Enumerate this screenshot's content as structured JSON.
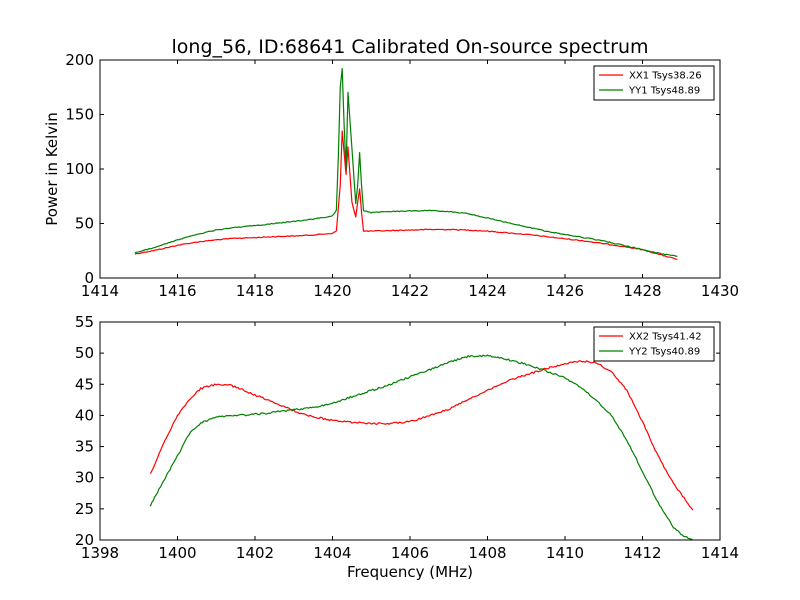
{
  "chart_data": [
    {
      "type": "line",
      "title": "long_56, ID:68641 Calibrated On-source spectrum",
      "xlabel": "",
      "ylabel": "Power in Kelvin",
      "xlim": [
        1414,
        1430
      ],
      "ylim": [
        0,
        200
      ],
      "xticks": [
        "1414",
        "1416",
        "1418",
        "1420",
        "1422",
        "1424",
        "1426",
        "1428",
        "1430"
      ],
      "yticks": [
        "0",
        "50",
        "100",
        "150",
        "200"
      ],
      "grid": false,
      "legend_position": "top-right",
      "series": [
        {
          "name": "XX1 Tsys38.26",
          "color": "#ff0000",
          "x": [
            1414.9,
            1415.5,
            1416.0,
            1416.5,
            1417.0,
            1417.5,
            1418.0,
            1418.5,
            1419.0,
            1419.5,
            1420.0,
            1420.1,
            1420.2,
            1420.25,
            1420.3,
            1420.35,
            1420.4,
            1420.5,
            1420.6,
            1420.65,
            1420.7,
            1420.75,
            1420.8,
            1421.0,
            1421.5,
            1422.0,
            1422.5,
            1423.0,
            1423.5,
            1424.0,
            1424.5,
            1425.0,
            1425.5,
            1426.0,
            1426.5,
            1427.0,
            1427.5,
            1428.0,
            1428.5,
            1428.9
          ],
          "y": [
            22,
            26,
            30,
            33,
            35,
            36.5,
            37,
            38,
            38.5,
            39.5,
            41,
            43,
            85,
            135,
            115,
            95,
            120,
            70,
            56,
            70,
            82,
            60,
            43,
            43,
            43.5,
            44,
            44.5,
            44.5,
            44,
            43,
            41.5,
            40,
            38,
            36,
            34,
            31.5,
            29,
            26,
            21,
            17
          ]
        },
        {
          "name": "YY1 Tsys48.89",
          "color": "#008000",
          "x": [
            1414.9,
            1415.5,
            1416.0,
            1416.5,
            1417.0,
            1417.5,
            1418.0,
            1418.5,
            1419.0,
            1419.5,
            1420.0,
            1420.1,
            1420.15,
            1420.2,
            1420.25,
            1420.3,
            1420.35,
            1420.4,
            1420.5,
            1420.6,
            1420.65,
            1420.7,
            1420.75,
            1420.8,
            1421.0,
            1421.5,
            1422.0,
            1422.5,
            1423.0,
            1423.5,
            1424.0,
            1424.5,
            1425.0,
            1425.5,
            1426.0,
            1426.5,
            1427.0,
            1427.5,
            1428.0,
            1428.5,
            1428.9
          ],
          "y": [
            23,
            29,
            35,
            40,
            44,
            46.5,
            48,
            50,
            52,
            54,
            57,
            62,
            110,
            175,
            192,
            140,
            100,
            170,
            120,
            68,
            85,
            115,
            85,
            62,
            60,
            61,
            61.5,
            62,
            61,
            59,
            55,
            51,
            47,
            43,
            40,
            37,
            34,
            30,
            26,
            22,
            20
          ]
        }
      ]
    },
    {
      "type": "line",
      "title": "",
      "xlabel": "Frequency (MHz)",
      "ylabel": "",
      "xlim": [
        1398,
        1414
      ],
      "ylim": [
        20,
        55
      ],
      "xticks": [
        "1398",
        "1400",
        "1402",
        "1404",
        "1406",
        "1408",
        "1410",
        "1412",
        "1414"
      ],
      "yticks": [
        "20",
        "25",
        "30",
        "35",
        "40",
        "45",
        "50",
        "55"
      ],
      "grid": false,
      "legend_position": "top-right",
      "series": [
        {
          "name": "XX2 Tsys41.42",
          "color": "#ff0000",
          "x": [
            1399.3,
            1399.6,
            1400.0,
            1400.3,
            1400.6,
            1401.0,
            1401.4,
            1401.8,
            1402.2,
            1402.6,
            1403.0,
            1403.5,
            1404.0,
            1404.5,
            1405.0,
            1405.5,
            1406.0,
            1406.5,
            1407.0,
            1407.5,
            1408.0,
            1408.5,
            1409.0,
            1409.5,
            1410.0,
            1410.4,
            1410.8,
            1411.2,
            1411.6,
            1412.0,
            1412.4,
            1412.8,
            1413.3
          ],
          "y": [
            30.5,
            35,
            40,
            42.5,
            44.3,
            45,
            44.8,
            43.8,
            42.8,
            41.8,
            40.7,
            39.8,
            39.2,
            38.9,
            38.7,
            38.7,
            39,
            40,
            41,
            42.5,
            44,
            45.5,
            46.5,
            47.5,
            48.3,
            48.7,
            48.5,
            47,
            44,
            39,
            33.5,
            29,
            24.8
          ]
        },
        {
          "name": "YY2 Tsys40.89",
          "color": "#008000",
          "x": [
            1399.3,
            1399.6,
            1400.0,
            1400.3,
            1400.6,
            1401.0,
            1401.4,
            1401.8,
            1402.2,
            1402.6,
            1403.0,
            1403.5,
            1404.0,
            1404.5,
            1405.0,
            1405.5,
            1406.0,
            1406.5,
            1407.0,
            1407.5,
            1408.0,
            1408.5,
            1409.0,
            1409.5,
            1410.0,
            1410.4,
            1410.8,
            1411.2,
            1411.6,
            1412.0,
            1412.4,
            1412.8,
            1413.1,
            1413.3
          ],
          "y": [
            25.5,
            29,
            33.5,
            37,
            38.8,
            39.7,
            40,
            40.1,
            40.3,
            40.6,
            40.9,
            41.3,
            42,
            43,
            44,
            45,
            46.2,
            47.3,
            48.5,
            49.5,
            49.6,
            49,
            48.2,
            47.2,
            46,
            44.5,
            42.5,
            40,
            36,
            31,
            26,
            22,
            20.5,
            20
          ]
        }
      ]
    }
  ]
}
